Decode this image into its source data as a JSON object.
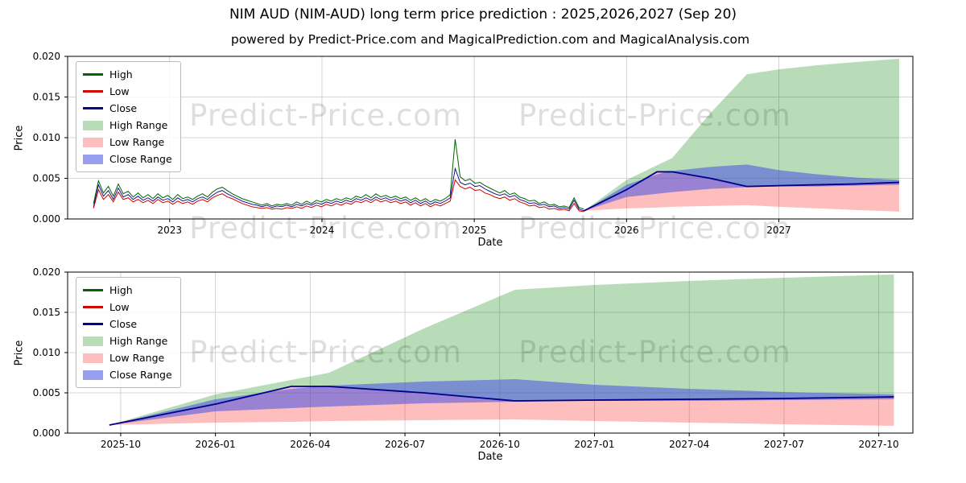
{
  "title": "NIM AUD (NIM-AUD) long term price prediction : 2025,2026,2027 (Sep 20)",
  "subtitle": "powered by Predict-Price.com and MagicalPrediction.com and MagicalAnalysis.com",
  "watermark": "Predict-Price.com",
  "colors": {
    "high_line": "#006400",
    "low_line": "#d40000",
    "close_line": "#00008b",
    "high_range": "rgba(0,128,0,0.28)",
    "low_range": "rgba(255,40,40,0.30)",
    "close_range": "rgba(70,80,225,0.55)",
    "grid": "#c8c8c8"
  },
  "legend": {
    "items": [
      {
        "label": "High",
        "swatch": "line",
        "color_key": "high_line"
      },
      {
        "label": "Low",
        "swatch": "line",
        "color_key": "low_line"
      },
      {
        "label": "Close",
        "swatch": "line",
        "color_key": "close_line"
      },
      {
        "label": "High Range",
        "swatch": "area",
        "color_key": "high_range"
      },
      {
        "label": "Low Range",
        "swatch": "area",
        "color_key": "low_range"
      },
      {
        "label": "Close Range",
        "swatch": "area",
        "color_key": "close_range"
      }
    ]
  },
  "chart_data": [
    {
      "type": "line",
      "title": "",
      "xlabel": "Date",
      "ylabel": "Price",
      "xlim": [
        2022.33,
        2027.88
      ],
      "ylim": [
        0,
        0.02
      ],
      "grid": true,
      "legend_position": "upper left",
      "xticks": [
        {
          "v": 2023,
          "label": "2023"
        },
        {
          "v": 2024,
          "label": "2024"
        },
        {
          "v": 2025,
          "label": "2025"
        },
        {
          "v": 2026,
          "label": "2026"
        },
        {
          "v": 2027,
          "label": "2027"
        }
      ],
      "yticks": [
        {
          "v": 0.0,
          "label": "0.000"
        },
        {
          "v": 0.005,
          "label": "0.005"
        },
        {
          "v": 0.01,
          "label": "0.010"
        },
        {
          "v": 0.015,
          "label": "0.015"
        },
        {
          "v": 0.02,
          "label": "0.020"
        }
      ],
      "history": {
        "x_start": 2022.5,
        "x_step": 0.03253,
        "close": [
          0.0015,
          0.0042,
          0.0028,
          0.0035,
          0.0024,
          0.0038,
          0.0027,
          0.003,
          0.0024,
          0.0028,
          0.0023,
          0.0026,
          0.0022,
          0.0027,
          0.0023,
          0.0025,
          0.0021,
          0.0026,
          0.0022,
          0.0024,
          0.0021,
          0.0025,
          0.0027,
          0.0024,
          0.0029,
          0.0033,
          0.0035,
          0.0031,
          0.0028,
          0.0025,
          0.0022,
          0.002,
          0.0018,
          0.0017,
          0.0015,
          0.0017,
          0.0014,
          0.0016,
          0.0015,
          0.0017,
          0.0015,
          0.0018,
          0.0016,
          0.0019,
          0.0017,
          0.002,
          0.0018,
          0.0021,
          0.0019,
          0.0022,
          0.002,
          0.0023,
          0.0021,
          0.0025,
          0.0023,
          0.0026,
          0.0023,
          0.0027,
          0.0024,
          0.0026,
          0.0023,
          0.0025,
          0.0022,
          0.0024,
          0.002,
          0.0023,
          0.0019,
          0.0022,
          0.0018,
          0.0021,
          0.0019,
          0.0022,
          0.0026,
          0.0062,
          0.0045,
          0.0042,
          0.0044,
          0.004,
          0.0041,
          0.0037,
          0.0034,
          0.0031,
          0.0029,
          0.0031,
          0.0027,
          0.0029,
          0.0024,
          0.0022,
          0.0019,
          0.002,
          0.0017,
          0.0018,
          0.0015,
          0.0016,
          0.0013,
          0.0014,
          0.0012,
          0.0023,
          0.0012,
          0.001
        ],
        "high": [
          0.0019,
          0.0047,
          0.0032,
          0.004,
          0.0028,
          0.0043,
          0.0031,
          0.0034,
          0.0027,
          0.0032,
          0.0026,
          0.003,
          0.0025,
          0.0031,
          0.0026,
          0.0029,
          0.0024,
          0.003,
          0.0025,
          0.0027,
          0.0024,
          0.0028,
          0.0031,
          0.0027,
          0.0033,
          0.0037,
          0.0039,
          0.0035,
          0.0031,
          0.0028,
          0.0025,
          0.0023,
          0.0021,
          0.0019,
          0.0017,
          0.0019,
          0.0016,
          0.0018,
          0.0017,
          0.0019,
          0.0017,
          0.0021,
          0.0018,
          0.0022,
          0.0019,
          0.0023,
          0.0021,
          0.0024,
          0.0022,
          0.0025,
          0.0023,
          0.0026,
          0.0024,
          0.0028,
          0.0026,
          0.003,
          0.0026,
          0.0031,
          0.0027,
          0.0029,
          0.0026,
          0.0028,
          0.0025,
          0.0027,
          0.0023,
          0.0026,
          0.0022,
          0.0025,
          0.0021,
          0.0024,
          0.0022,
          0.0025,
          0.003,
          0.0098,
          0.0052,
          0.0047,
          0.0049,
          0.0044,
          0.0045,
          0.0041,
          0.0038,
          0.0035,
          0.0032,
          0.0035,
          0.003,
          0.0032,
          0.0027,
          0.0025,
          0.0022,
          0.0023,
          0.0019,
          0.0021,
          0.0017,
          0.0018,
          0.0015,
          0.0016,
          0.0014,
          0.0026,
          0.0014,
          0.0012
        ],
        "low": [
          0.0013,
          0.0036,
          0.0024,
          0.003,
          0.0021,
          0.0033,
          0.0024,
          0.0026,
          0.0021,
          0.0024,
          0.002,
          0.0023,
          0.0019,
          0.0024,
          0.002,
          0.0022,
          0.0018,
          0.0022,
          0.0019,
          0.0021,
          0.0018,
          0.0022,
          0.0024,
          0.0021,
          0.0026,
          0.0029,
          0.0031,
          0.0027,
          0.0025,
          0.0022,
          0.0019,
          0.0017,
          0.0015,
          0.0014,
          0.0013,
          0.0014,
          0.0012,
          0.0013,
          0.0012,
          0.0014,
          0.0013,
          0.0015,
          0.0013,
          0.0016,
          0.0014,
          0.0017,
          0.0015,
          0.0018,
          0.0016,
          0.0019,
          0.0017,
          0.002,
          0.0018,
          0.0022,
          0.002,
          0.0023,
          0.002,
          0.0024,
          0.0021,
          0.0023,
          0.002,
          0.0022,
          0.0019,
          0.0021,
          0.0017,
          0.002,
          0.0016,
          0.0019,
          0.0015,
          0.0018,
          0.0016,
          0.0019,
          0.0022,
          0.0048,
          0.004,
          0.0037,
          0.0039,
          0.0035,
          0.0036,
          0.0032,
          0.003,
          0.0027,
          0.0025,
          0.0027,
          0.0023,
          0.0025,
          0.0021,
          0.0019,
          0.0016,
          0.0017,
          0.0014,
          0.0015,
          0.0012,
          0.0013,
          0.0011,
          0.0012,
          0.001,
          0.0019,
          0.001,
          0.0009
        ]
      },
      "forecast": {
        "x": [
          2025.72,
          2026.0,
          2026.2,
          2026.3,
          2026.55,
          2026.79,
          2027.0,
          2027.25,
          2027.5,
          2027.79
        ],
        "close": [
          0.001,
          0.0036,
          0.0058,
          0.0058,
          0.005,
          0.004,
          0.0041,
          0.0042,
          0.0043,
          0.0045
        ],
        "high_top": [
          0.001,
          0.0048,
          0.0066,
          0.0075,
          0.013,
          0.0178,
          0.0184,
          0.0189,
          0.0193,
          0.0197
        ],
        "low_bot": [
          0.001,
          0.0013,
          0.0014,
          0.0015,
          0.0016,
          0.0017,
          0.0015,
          0.0013,
          0.0011,
          0.0009
        ],
        "close_top": [
          0.001,
          0.0042,
          0.0055,
          0.0059,
          0.0064,
          0.0067,
          0.006,
          0.0055,
          0.0051,
          0.0048
        ],
        "close_bot": [
          0.001,
          0.0027,
          0.0031,
          0.0033,
          0.0037,
          0.0039,
          0.004,
          0.004,
          0.0041,
          0.0042
        ]
      }
    },
    {
      "type": "line",
      "title": "",
      "xlabel": "Date",
      "ylabel": "Price",
      "xlim": [
        2025.61,
        2027.84
      ],
      "ylim": [
        0,
        0.02
      ],
      "grid": true,
      "legend_position": "upper left",
      "xticks": [
        {
          "v": 2025.75,
          "label": "2025-10"
        },
        {
          "v": 2026.0,
          "label": "2026-01"
        },
        {
          "v": 2026.25,
          "label": "2026-04"
        },
        {
          "v": 2026.5,
          "label": "2026-07"
        },
        {
          "v": 2026.75,
          "label": "2026-10"
        },
        {
          "v": 2027.0,
          "label": "2027-01"
        },
        {
          "v": 2027.25,
          "label": "2027-04"
        },
        {
          "v": 2027.5,
          "label": "2027-07"
        },
        {
          "v": 2027.75,
          "label": "2027-10"
        }
      ],
      "yticks": [
        {
          "v": 0.0,
          "label": "0.000"
        },
        {
          "v": 0.005,
          "label": "0.005"
        },
        {
          "v": 0.01,
          "label": "0.010"
        },
        {
          "v": 0.015,
          "label": "0.015"
        },
        {
          "v": 0.02,
          "label": "0.020"
        }
      ],
      "forecast": {
        "x": [
          2025.72,
          2026.0,
          2026.2,
          2026.3,
          2026.55,
          2026.79,
          2027.0,
          2027.25,
          2027.5,
          2027.79
        ],
        "close": [
          0.001,
          0.0036,
          0.0058,
          0.0058,
          0.005,
          0.004,
          0.0041,
          0.0042,
          0.0043,
          0.0045
        ],
        "high_top": [
          0.001,
          0.0048,
          0.0066,
          0.0075,
          0.013,
          0.0178,
          0.0184,
          0.0189,
          0.0193,
          0.0197
        ],
        "low_bot": [
          0.001,
          0.0013,
          0.0014,
          0.0015,
          0.0016,
          0.0017,
          0.0015,
          0.0013,
          0.0011,
          0.0009
        ],
        "close_top": [
          0.001,
          0.0042,
          0.0055,
          0.0059,
          0.0064,
          0.0067,
          0.006,
          0.0055,
          0.0051,
          0.0048
        ],
        "close_bot": [
          0.001,
          0.0027,
          0.0031,
          0.0033,
          0.0037,
          0.0039,
          0.004,
          0.004,
          0.0041,
          0.0042
        ]
      }
    }
  ]
}
